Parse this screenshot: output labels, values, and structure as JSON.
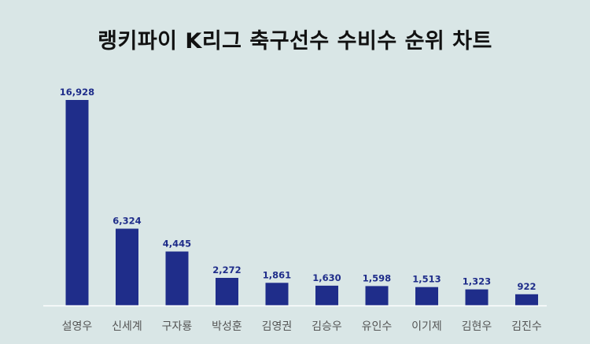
{
  "chart_data": {
    "type": "bar",
    "title": "랭키파이 K리그 축구선수 수비수 순위 차트",
    "categories": [
      "설영우",
      "신세계",
      "구자룡",
      "박성훈",
      "김영권",
      "김승우",
      "유인수",
      "이기제",
      "김현우",
      "김진수"
    ],
    "values": [
      16928,
      6324,
      4445,
      2272,
      1861,
      1630,
      1598,
      1513,
      1323,
      922
    ],
    "value_labels": [
      "16,928",
      "6,324",
      "4,445",
      "2,272",
      "1,861",
      "1,630",
      "1,598",
      "1,513",
      "1,323",
      "922"
    ],
    "xlabel": "",
    "ylabel": "",
    "ylim": [
      0,
      16928
    ],
    "grid": false,
    "legend": "none",
    "colors": {
      "bar": "#1f2d8a",
      "value_label": "#1f2d8a",
      "background": "#d9e6e6",
      "axis": "#ffffff"
    }
  }
}
